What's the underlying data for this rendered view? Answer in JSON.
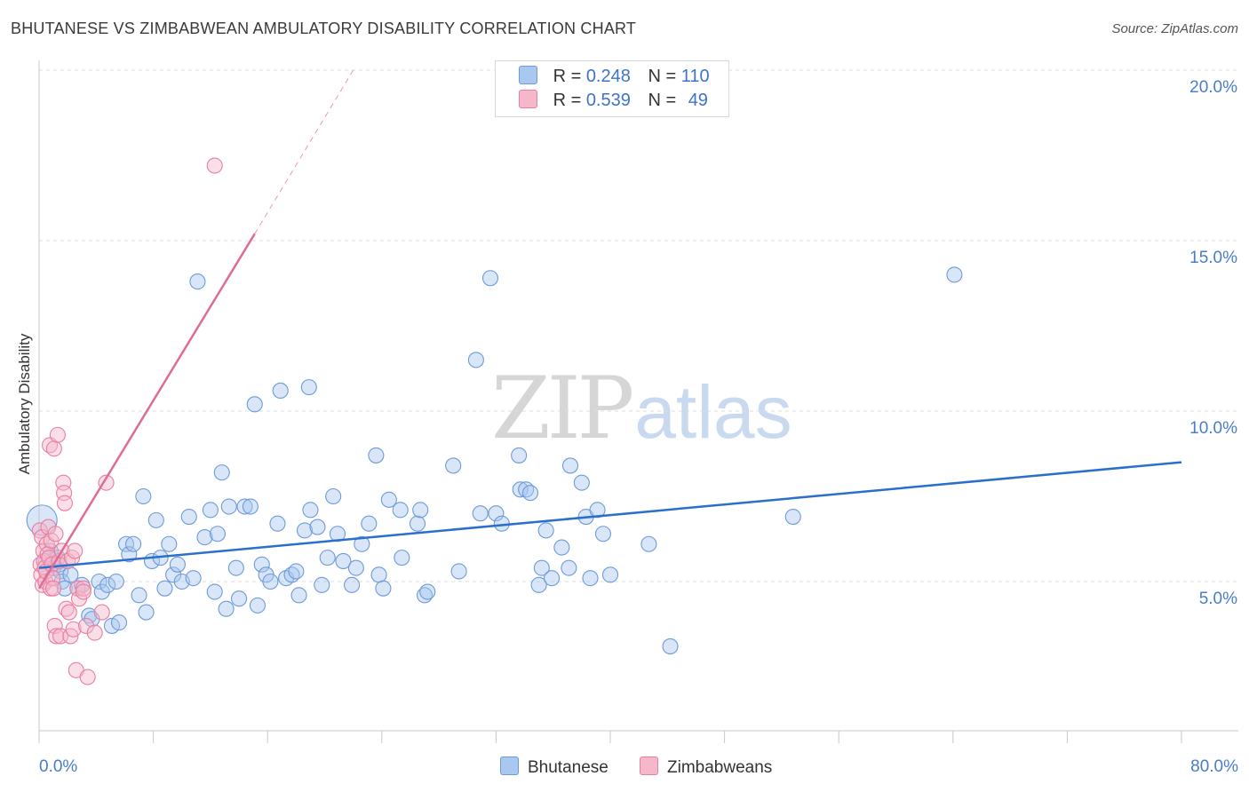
{
  "title": "BHUTANESE VS ZIMBABWEAN AMBULATORY DISABILITY CORRELATION CHART",
  "source": "Source: ZipAtlas.com",
  "watermark": {
    "zip": "ZIP",
    "atlas": "atlas"
  },
  "legend": {
    "rows": [
      {
        "r_label": "R =",
        "r_value": "0.248",
        "n_label": "N =",
        "n_value": "110"
      },
      {
        "r_label": "R =",
        "r_value": "0.539",
        "n_label": "N =",
        "n_value": "49"
      }
    ]
  },
  "bottom_legend": [
    "Bhutanese",
    "Zimbabweans"
  ],
  "colors": {
    "blue_fill": "#a9c8f0",
    "blue_stroke": "#6d9ad8",
    "blue_line": "#2b6fcd",
    "pink_fill": "#f5b8cb",
    "pink_stroke": "#e97fa0",
    "pink_line": "#e06b93",
    "grid": "#dcdcdc",
    "tick_text": "#4a7cc9"
  },
  "chart_data": {
    "type": "scatter",
    "title": "BHUTANESE VS ZIMBABWEAN AMBULATORY DISABILITY CORRELATION CHART",
    "xlabel": "",
    "ylabel": "Ambulatory Disability",
    "xlim": [
      0,
      80
    ],
    "ylim": [
      0,
      20.5
    ],
    "x_tick_labels": [
      "0.0%",
      "80.0%"
    ],
    "y_ticks": [
      5,
      10,
      15,
      20
    ],
    "y_tick_labels": [
      "5.0%",
      "10.0%",
      "15.0%",
      "20.0%"
    ],
    "grid": "horizontal dashed",
    "legend_position": "top-center",
    "series": [
      {
        "name": "Bhutanese",
        "r": 0.248,
        "n": 110,
        "trend": {
          "x": [
            0,
            80
          ],
          "y": [
            5.4,
            8.5
          ]
        },
        "points": [
          [
            0.2,
            6.8
          ],
          [
            0.5,
            5.6
          ],
          [
            0.8,
            5.9
          ],
          [
            1,
            5.4
          ],
          [
            1.3,
            5.7
          ],
          [
            1.4,
            5.5
          ],
          [
            1.5,
            5.3
          ],
          [
            1.6,
            5
          ],
          [
            1.8,
            4.8
          ],
          [
            2.2,
            5.2
          ],
          [
            2.7,
            4.8
          ],
          [
            3,
            4.9
          ],
          [
            3.5,
            4
          ],
          [
            3.7,
            3.9
          ],
          [
            4.2,
            5
          ],
          [
            4.4,
            4.7
          ],
          [
            4.8,
            4.9
          ],
          [
            5.1,
            3.7
          ],
          [
            5.4,
            5
          ],
          [
            5.6,
            3.8
          ],
          [
            6.1,
            6.1
          ],
          [
            6.3,
            5.8
          ],
          [
            6.6,
            6.1
          ],
          [
            7,
            4.6
          ],
          [
            7.3,
            7.5
          ],
          [
            7.5,
            4.1
          ],
          [
            7.9,
            5.6
          ],
          [
            8.2,
            6.8
          ],
          [
            8.5,
            5.7
          ],
          [
            8.8,
            4.8
          ],
          [
            9.1,
            6.1
          ],
          [
            9.4,
            5.2
          ],
          [
            9.7,
            5.5
          ],
          [
            10,
            5
          ],
          [
            10.5,
            6.9
          ],
          [
            10.8,
            5.1
          ],
          [
            11.1,
            13.8
          ],
          [
            11.6,
            6.3
          ],
          [
            12,
            7.1
          ],
          [
            12.3,
            4.7
          ],
          [
            12.5,
            6.4
          ],
          [
            12.8,
            8.2
          ],
          [
            13.1,
            4.2
          ],
          [
            13.3,
            7.2
          ],
          [
            13.8,
            5.4
          ],
          [
            14,
            4.5
          ],
          [
            14.4,
            7.2
          ],
          [
            14.8,
            7.2
          ],
          [
            15.3,
            4.3
          ],
          [
            15.1,
            10.2
          ],
          [
            15.6,
            5.5
          ],
          [
            15.9,
            5.2
          ],
          [
            16.2,
            5
          ],
          [
            16.7,
            6.7
          ],
          [
            16.9,
            10.6
          ],
          [
            17.3,
            5.1
          ],
          [
            17.7,
            5.2
          ],
          [
            18,
            5.3
          ],
          [
            18.2,
            4.6
          ],
          [
            18.6,
            6.5
          ],
          [
            18.9,
            10.7
          ],
          [
            19,
            7.1
          ],
          [
            19.5,
            6.6
          ],
          [
            19.8,
            4.9
          ],
          [
            20.2,
            5.7
          ],
          [
            20.6,
            7.5
          ],
          [
            20.9,
            6.4
          ],
          [
            21.3,
            5.6
          ],
          [
            21.9,
            4.9
          ],
          [
            22.2,
            5.4
          ],
          [
            22.6,
            6.1
          ],
          [
            23.1,
            6.7
          ],
          [
            23.6,
            8.7
          ],
          [
            23.8,
            5.2
          ],
          [
            24.1,
            4.8
          ],
          [
            24.5,
            7.4
          ],
          [
            25.3,
            7.1
          ],
          [
            25.4,
            5.7
          ],
          [
            26.5,
            6.7
          ],
          [
            26.7,
            7.1
          ],
          [
            27,
            4.6
          ],
          [
            27.2,
            4.7
          ],
          [
            29,
            8.4
          ],
          [
            29.4,
            5.3
          ],
          [
            30.6,
            11.5
          ],
          [
            30.9,
            7
          ],
          [
            31.6,
            13.9
          ],
          [
            32,
            7
          ],
          [
            32.4,
            6.7
          ],
          [
            33.6,
            8.7
          ],
          [
            33.7,
            7.7
          ],
          [
            34.1,
            7.7
          ],
          [
            34.4,
            7.6
          ],
          [
            35,
            4.9
          ],
          [
            35.2,
            5.4
          ],
          [
            35.5,
            6.5
          ],
          [
            35.9,
            5.1
          ],
          [
            36.6,
            6
          ],
          [
            37.1,
            5.4
          ],
          [
            37.2,
            8.4
          ],
          [
            38,
            7.9
          ],
          [
            38.3,
            6.9
          ],
          [
            38.6,
            5.1
          ],
          [
            39.1,
            7.1
          ],
          [
            39.5,
            6.4
          ],
          [
            40,
            5.2
          ],
          [
            42.7,
            6.1
          ],
          [
            44.2,
            3.1
          ],
          [
            52.8,
            6.9
          ],
          [
            64.1,
            14
          ]
        ]
      },
      {
        "name": "Zimbabweans",
        "r": 0.539,
        "n": 49,
        "trend": {
          "x": [
            0,
            15.1
          ],
          "y": [
            4.8,
            15.2
          ]
        },
        "trend_dashed": {
          "x": [
            15.1,
            22
          ],
          "y": [
            15.2,
            20
          ]
        },
        "points": [
          [
            0.05,
            6.5
          ],
          [
            0.1,
            5.5
          ],
          [
            0.15,
            5.2
          ],
          [
            0.2,
            6.3
          ],
          [
            0.25,
            4.9
          ],
          [
            0.3,
            5.9
          ],
          [
            0.35,
            5.6
          ],
          [
            0.4,
            5.4
          ],
          [
            0.45,
            5
          ],
          [
            0.5,
            5.3
          ],
          [
            0.55,
            6.1
          ],
          [
            0.6,
            5.8
          ],
          [
            0.65,
            6.6
          ],
          [
            0.7,
            5.7
          ],
          [
            0.75,
            9
          ],
          [
            0.8,
            4.8
          ],
          [
            0.85,
            6.2
          ],
          [
            0.9,
            5.5
          ],
          [
            0.95,
            5.1
          ],
          [
            1,
            4.8
          ],
          [
            1.05,
            8.9
          ],
          [
            1.1,
            3.7
          ],
          [
            1.15,
            6.4
          ],
          [
            1.2,
            3.4
          ],
          [
            1.3,
            9.3
          ],
          [
            1.4,
            5.6
          ],
          [
            1.5,
            3.4
          ],
          [
            1.6,
            5.9
          ],
          [
            1.7,
            7.9
          ],
          [
            1.75,
            7.6
          ],
          [
            1.8,
            7.3
          ],
          [
            1.9,
            4.2
          ],
          [
            2,
            5.6
          ],
          [
            2.1,
            4.1
          ],
          [
            2.2,
            3.4
          ],
          [
            2.3,
            5.7
          ],
          [
            2.4,
            3.6
          ],
          [
            2.5,
            5.9
          ],
          [
            2.6,
            2.4
          ],
          [
            2.7,
            4.8
          ],
          [
            2.8,
            4.5
          ],
          [
            3.1,
            4.8
          ],
          [
            3.3,
            3.7
          ],
          [
            3.4,
            2.2
          ],
          [
            3.1,
            4.7
          ],
          [
            3.9,
            3.5
          ],
          [
            4.4,
            4.1
          ],
          [
            4.7,
            7.9
          ],
          [
            12.3,
            17.2
          ]
        ]
      }
    ]
  }
}
